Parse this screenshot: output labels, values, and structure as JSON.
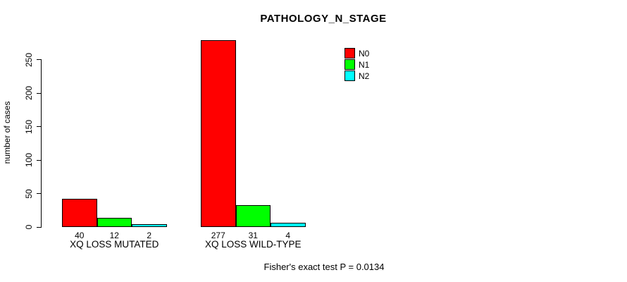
{
  "chart_data": {
    "type": "bar",
    "title": "PATHOLOGY_N_STAGE",
    "ylabel": "number of cases",
    "xlabel": "",
    "categories": [
      "XQ LOSS MUTATED",
      "XQ LOSS WILD-TYPE"
    ],
    "series": [
      {
        "name": "N0",
        "color": "#ff0000",
        "values": [
          40,
          277
        ]
      },
      {
        "name": "N1",
        "color": "#00ff00",
        "values": [
          12,
          31
        ]
      },
      {
        "name": "N2",
        "color": "#00ffff",
        "values": [
          2,
          4
        ]
      }
    ],
    "bar_value_labels": [
      [
        "40",
        "12",
        "2"
      ],
      [
        "277",
        "31",
        "4"
      ]
    ],
    "yticks": [
      0,
      50,
      100,
      150,
      200,
      250
    ],
    "ylim": [
      0,
      277
    ],
    "grid": false,
    "legend_position": "top-right",
    "annotation": "Fisher's exact test P = 0.0134"
  }
}
